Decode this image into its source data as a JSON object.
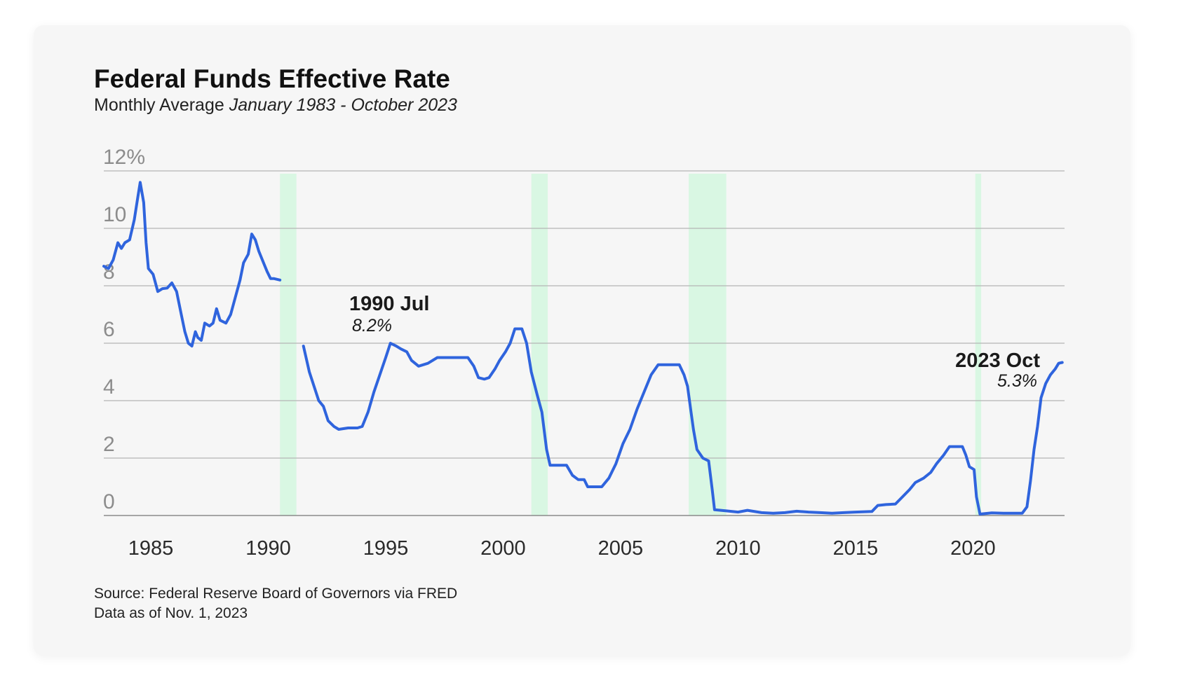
{
  "chart_data": {
    "type": "line",
    "title": "Federal Funds Effective Rate",
    "subtitle": "Monthly Average",
    "subtitle_range": "January 1983 - October 2023",
    "ytick_labels": [
      "12%",
      "10",
      "8",
      "6",
      "4",
      "2",
      "0"
    ],
    "yticks": [
      12,
      10,
      8,
      6,
      4,
      2,
      0
    ],
    "ylim": [
      0,
      12
    ],
    "xlim": [
      1983,
      2023.9
    ],
    "xticks": [
      1985,
      1990,
      1995,
      2000,
      2005,
      2010,
      2015,
      2020
    ],
    "xtick_labels": [
      "1985",
      "1990",
      "1995",
      "2000",
      "2005",
      "2010",
      "2015",
      "2020"
    ],
    "grid": "horizontal",
    "recessions": [
      [
        1990.5,
        1991.2
      ],
      [
        2001.2,
        2001.9
      ],
      [
        2007.9,
        2009.5
      ],
      [
        2020.1,
        2020.35
      ]
    ],
    "series": [
      {
        "name": "Federal Funds Effective Rate",
        "color": "#2f64dd",
        "segments": [
          [
            [
              1983.0,
              8.68
            ],
            [
              1983.2,
              8.6
            ],
            [
              1983.4,
              8.9
            ],
            [
              1983.6,
              9.5
            ],
            [
              1983.75,
              9.3
            ],
            [
              1983.9,
              9.5
            ],
            [
              1984.1,
              9.6
            ],
            [
              1984.3,
              10.3
            ],
            [
              1984.45,
              11.1
            ],
            [
              1984.55,
              11.6
            ],
            [
              1984.7,
              10.9
            ],
            [
              1984.8,
              9.5
            ],
            [
              1984.9,
              8.6
            ],
            [
              1985.1,
              8.4
            ],
            [
              1985.3,
              7.8
            ],
            [
              1985.5,
              7.9
            ],
            [
              1985.7,
              7.92
            ],
            [
              1985.9,
              8.1
            ],
            [
              1986.1,
              7.8
            ],
            [
              1986.3,
              7.0
            ],
            [
              1986.45,
              6.4
            ],
            [
              1986.6,
              6.0
            ],
            [
              1986.75,
              5.9
            ],
            [
              1986.9,
              6.4
            ],
            [
              1987.0,
              6.2
            ],
            [
              1987.15,
              6.1
            ],
            [
              1987.3,
              6.7
            ],
            [
              1987.5,
              6.6
            ],
            [
              1987.65,
              6.7
            ],
            [
              1987.8,
              7.2
            ],
            [
              1987.95,
              6.8
            ],
            [
              1988.2,
              6.7
            ],
            [
              1988.4,
              7.0
            ],
            [
              1988.6,
              7.6
            ],
            [
              1988.8,
              8.2
            ],
            [
              1988.95,
              8.8
            ],
            [
              1989.15,
              9.1
            ],
            [
              1989.3,
              9.8
            ],
            [
              1989.45,
              9.6
            ],
            [
              1989.6,
              9.2
            ],
            [
              1989.8,
              8.8
            ],
            [
              1989.95,
              8.5
            ],
            [
              1990.1,
              8.25
            ],
            [
              1990.25,
              8.25
            ],
            [
              1990.5,
              8.2
            ]
          ],
          [
            [
              1991.5,
              5.9
            ],
            [
              1991.75,
              5.0
            ],
            [
              1991.95,
              4.5
            ],
            [
              1992.15,
              4.0
            ],
            [
              1992.35,
              3.8
            ],
            [
              1992.55,
              3.3
            ],
            [
              1992.8,
              3.1
            ],
            [
              1993.0,
              3.0
            ],
            [
              1993.4,
              3.05
            ],
            [
              1993.8,
              3.05
            ],
            [
              1994.0,
              3.1
            ],
            [
              1994.25,
              3.6
            ],
            [
              1994.5,
              4.3
            ],
            [
              1994.75,
              4.9
            ],
            [
              1995.0,
              5.5
            ],
            [
              1995.2,
              6.0
            ],
            [
              1995.45,
              5.9
            ],
            [
              1995.65,
              5.8
            ],
            [
              1995.9,
              5.7
            ],
            [
              1996.1,
              5.4
            ],
            [
              1996.4,
              5.2
            ],
            [
              1996.8,
              5.3
            ],
            [
              1997.2,
              5.5
            ],
            [
              1997.7,
              5.5
            ],
            [
              1998.1,
              5.5
            ],
            [
              1998.5,
              5.5
            ],
            [
              1998.75,
              5.2
            ],
            [
              1998.95,
              4.8
            ],
            [
              1999.2,
              4.75
            ],
            [
              1999.4,
              4.8
            ],
            [
              1999.65,
              5.1
            ],
            [
              1999.85,
              5.4
            ],
            [
              2000.1,
              5.7
            ],
            [
              2000.3,
              6.0
            ],
            [
              2000.5,
              6.5
            ],
            [
              2000.8,
              6.5
            ],
            [
              2001.0,
              6.0
            ],
            [
              2001.2,
              5.0
            ],
            [
              2001.45,
              4.2
            ],
            [
              2001.65,
              3.6
            ],
            [
              2001.85,
              2.3
            ],
            [
              2002.0,
              1.75
            ],
            [
              2002.3,
              1.75
            ],
            [
              2002.7,
              1.75
            ],
            [
              2002.95,
              1.4
            ],
            [
              2003.2,
              1.25
            ],
            [
              2003.45,
              1.25
            ],
            [
              2003.6,
              1.0
            ],
            [
              2003.9,
              1.0
            ],
            [
              2004.2,
              1.0
            ],
            [
              2004.5,
              1.3
            ],
            [
              2004.8,
              1.8
            ],
            [
              2005.1,
              2.5
            ],
            [
              2005.4,
              3.0
            ],
            [
              2005.7,
              3.7
            ],
            [
              2006.0,
              4.3
            ],
            [
              2006.3,
              4.9
            ],
            [
              2006.6,
              5.25
            ],
            [
              2006.9,
              5.25
            ],
            [
              2007.2,
              5.25
            ],
            [
              2007.5,
              5.25
            ],
            [
              2007.7,
              4.9
            ],
            [
              2007.85,
              4.5
            ],
            [
              2008.0,
              3.6
            ],
            [
              2008.1,
              3.0
            ],
            [
              2008.25,
              2.3
            ],
            [
              2008.5,
              2.0
            ],
            [
              2008.75,
              1.9
            ],
            [
              2008.9,
              0.9
            ],
            [
              2009.0,
              0.2
            ],
            [
              2009.5,
              0.16
            ],
            [
              2010.0,
              0.12
            ],
            [
              2010.4,
              0.18
            ],
            [
              2011.0,
              0.1
            ],
            [
              2011.5,
              0.08
            ],
            [
              2012.0,
              0.1
            ],
            [
              2012.5,
              0.15
            ],
            [
              2013.0,
              0.12
            ],
            [
              2013.5,
              0.1
            ],
            [
              2014.0,
              0.08
            ],
            [
              2014.5,
              0.1
            ],
            [
              2015.0,
              0.12
            ],
            [
              2015.7,
              0.14
            ],
            [
              2015.95,
              0.35
            ],
            [
              2016.3,
              0.38
            ],
            [
              2016.7,
              0.4
            ],
            [
              2017.0,
              0.65
            ],
            [
              2017.3,
              0.9
            ],
            [
              2017.55,
              1.15
            ],
            [
              2017.9,
              1.3
            ],
            [
              2018.2,
              1.5
            ],
            [
              2018.45,
              1.8
            ],
            [
              2018.75,
              2.1
            ],
            [
              2019.0,
              2.4
            ],
            [
              2019.3,
              2.4
            ],
            [
              2019.55,
              2.4
            ],
            [
              2019.7,
              2.1
            ],
            [
              2019.85,
              1.7
            ],
            [
              2020.05,
              1.6
            ],
            [
              2020.15,
              0.65
            ],
            [
              2020.3,
              0.05
            ],
            [
              2020.8,
              0.09
            ],
            [
              2021.3,
              0.08
            ],
            [
              2021.8,
              0.08
            ],
            [
              2022.1,
              0.08
            ],
            [
              2022.3,
              0.3
            ],
            [
              2022.45,
              1.2
            ],
            [
              2022.6,
              2.3
            ],
            [
              2022.75,
              3.1
            ],
            [
              2022.9,
              4.1
            ],
            [
              2023.1,
              4.6
            ],
            [
              2023.3,
              4.9
            ],
            [
              2023.5,
              5.1
            ],
            [
              2023.65,
              5.3
            ],
            [
              2023.8,
              5.33
            ]
          ]
        ]
      }
    ],
    "annotations": [
      {
        "label": "1990 Jul",
        "value": "8.2%"
      },
      {
        "label": "2023 Oct",
        "value": "5.3%"
      }
    ]
  },
  "footer": {
    "source": "Source: Federal Reserve Board of Governors via FRED",
    "date": "Data as of Nov. 1, 2023"
  }
}
